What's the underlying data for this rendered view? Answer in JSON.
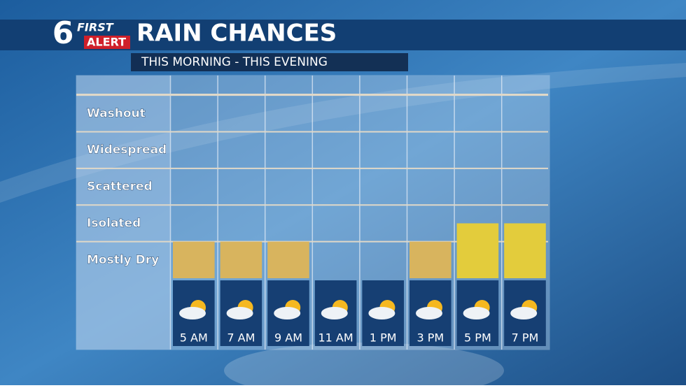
{
  "logo": {
    "number": "6",
    "top": "FIRST",
    "bottom": "ALERT"
  },
  "chart_data": {
    "type": "bar",
    "title": "RAIN CHANCES",
    "subtitle": "THIS MORNING - THIS EVENING",
    "categories": [
      "5 AM",
      "7 AM",
      "9 AM",
      "11 AM",
      "1 PM",
      "3 PM",
      "5 PM",
      "7 PM"
    ],
    "values": [
      1,
      1,
      1,
      0,
      0,
      1,
      1.5,
      1.5
    ],
    "colors": [
      "#d8b45e",
      "#d8b45e",
      "#d8b45e",
      "#d8b45e",
      "#d8b45e",
      "#d8b45e",
      "#e3cc3c",
      "#e3cc3c"
    ],
    "ylim": [
      0,
      5.5
    ],
    "yticks": [
      {
        "value": 0.5,
        "label": "Mostly Dry"
      },
      {
        "value": 1.5,
        "label": "Isolated"
      },
      {
        "value": 2.5,
        "label": "Scattered"
      },
      {
        "value": 3.5,
        "label": "Widespread"
      },
      {
        "value": 4.5,
        "label": "Washout"
      }
    ],
    "grid": true
  }
}
